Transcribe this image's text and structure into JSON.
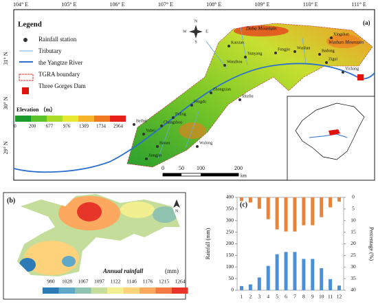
{
  "map_a": {
    "label": "(a)",
    "legend_title": "Legend",
    "legend_items": [
      "Rainfall station",
      "Tributary",
      "the Yangtze River",
      "TGRA boundary",
      "Three Gorges Dam"
    ],
    "elevation_title": "Elevation （m）",
    "elevation_labels": [
      "0",
      "200",
      "677",
      "976",
      "1309",
      "1734",
      "2964"
    ],
    "elevation_colors": [
      "#1a9a2a",
      "#5cc22a",
      "#a8dc28",
      "#e8e830",
      "#f5b52a",
      "#f07a22",
      "#e8201a"
    ],
    "longitudes": [
      "104° E",
      "105° E",
      "106° E",
      "107° E",
      "108° E",
      "109° E",
      "110° E",
      "111° E"
    ],
    "latitudes": [
      "31° N",
      "30° N",
      "29° N"
    ],
    "scale_labels": [
      "0",
      "50",
      "100",
      "200"
    ],
    "scale_unit": "km",
    "compass": [
      "N",
      "S",
      "W",
      "E"
    ],
    "places": [
      "Kaixian",
      "Yunyang",
      "Wanzhou",
      "Fengjie",
      "Wushan",
      "Badong",
      "Xingshan",
      "Zigui",
      "Yichang",
      "Zhongxian",
      "Shizhu",
      "Fengdu",
      "Fuling",
      "Wulong",
      "Changshou",
      "Yubei",
      "Beibei",
      "Jiangjin",
      "Banan"
    ],
    "mountains": [
      "Daba Mountain",
      "Wushan Mountain"
    ]
  },
  "map_b": {
    "label": "(b)",
    "legend_title": "Annual rainfall",
    "legend_unit": "(mm)",
    "legend_labels": [
      "980",
      "1028",
      "1067",
      "1097",
      "1122",
      "1146",
      "1176",
      "1215",
      "1264"
    ],
    "legend_colors": [
      "#2c7bb6",
      "#5fa8c8",
      "#8fc3b0",
      "#c4dd9a",
      "#f1ef90",
      "#fdd27a",
      "#fca85e",
      "#f47a43",
      "#e8352a"
    ],
    "north": "N"
  },
  "chart_data": {
    "type": "bar",
    "label": "(c)",
    "y_label": "Rainfall (mm)",
    "y2_label": "Percentage (%)",
    "categories": [
      "1",
      "2",
      "3",
      "4",
      "5",
      "6",
      "7",
      "8",
      "9",
      "10",
      "11",
      "12"
    ],
    "series": [
      {
        "name": "Rainfall",
        "color": "#4a90d9",
        "values": [
          18,
          25,
          55,
          105,
          155,
          165,
          165,
          135,
          135,
          95,
          48,
          20
        ]
      },
      {
        "name": "Percentage",
        "color": "#e8833a",
        "axis": "y2",
        "values": [
          1.6,
          2.2,
          4.9,
          9.4,
          13.8,
          14.7,
          14.7,
          12,
          12,
          8.5,
          4.3,
          1.8
        ]
      }
    ],
    "ylim": [
      0,
      400
    ],
    "yticks": [
      0,
      50,
      100,
      150,
      200,
      250,
      300,
      350,
      400
    ],
    "y2lim": [
      0,
      40
    ],
    "y2ticks": [
      0,
      5,
      10,
      15,
      20,
      25,
      30,
      35,
      40
    ],
    "y2_inverted": true
  }
}
